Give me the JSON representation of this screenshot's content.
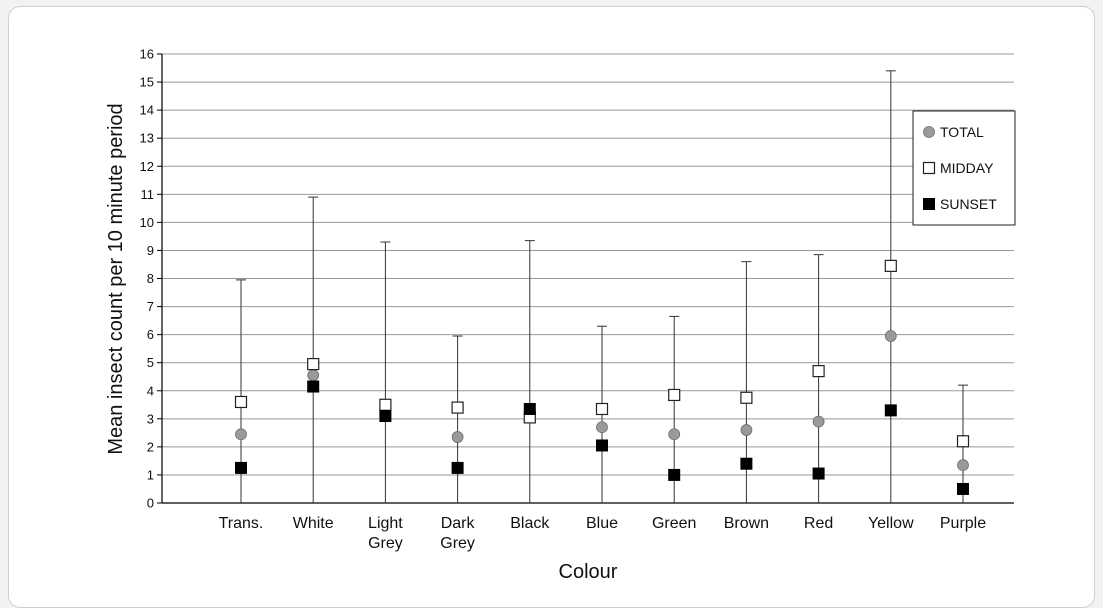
{
  "chart_data": {
    "type": "scatter",
    "title": "",
    "xlabel": "Colour",
    "ylabel": "Mean insect count per 10 minute period",
    "ylim": [
      0,
      16
    ],
    "yticks": [
      "0",
      "1",
      "2",
      "3",
      "4",
      "5",
      "6",
      "7",
      "8",
      "9",
      "10",
      "11",
      "12",
      "13",
      "14",
      "15",
      "16"
    ],
    "grid": true,
    "legend_position": "top-right",
    "categories": [
      [
        "Trans."
      ],
      [
        "White"
      ],
      [
        "Light",
        "Grey"
      ],
      [
        "Dark",
        "Grey"
      ],
      [
        "Black"
      ],
      [
        "Blue"
      ],
      [
        "Green"
      ],
      [
        "Brown"
      ],
      [
        "Red"
      ],
      [
        "Yellow"
      ],
      [
        "Purple"
      ]
    ],
    "series": [
      {
        "name": "TOTAL",
        "marker": "circle-grey",
        "values": [
          2.45,
          4.55,
          3.35,
          2.35,
          3.15,
          2.7,
          2.45,
          2.6,
          2.9,
          5.95,
          1.35
        ]
      },
      {
        "name": "MIDDAY",
        "marker": "square-open",
        "values": [
          3.6,
          4.95,
          3.5,
          3.4,
          3.05,
          3.35,
          3.85,
          3.75,
          4.7,
          8.45,
          2.2
        ]
      },
      {
        "name": "SUNSET",
        "marker": "square-black",
        "values": [
          1.25,
          4.15,
          3.1,
          1.25,
          3.35,
          2.05,
          1.0,
          1.4,
          1.05,
          3.3,
          0.5
        ]
      }
    ],
    "error_bar_upper": [
      7.95,
      10.9,
      9.3,
      5.95,
      9.35,
      6.3,
      6.65,
      8.6,
      8.85,
      15.4,
      4.2
    ],
    "colors": {
      "grid": "#999999",
      "axis": "#000000",
      "total_marker": "#9a9a9a",
      "sunset_marker": "#000000",
      "error_bar": "#333333"
    }
  }
}
